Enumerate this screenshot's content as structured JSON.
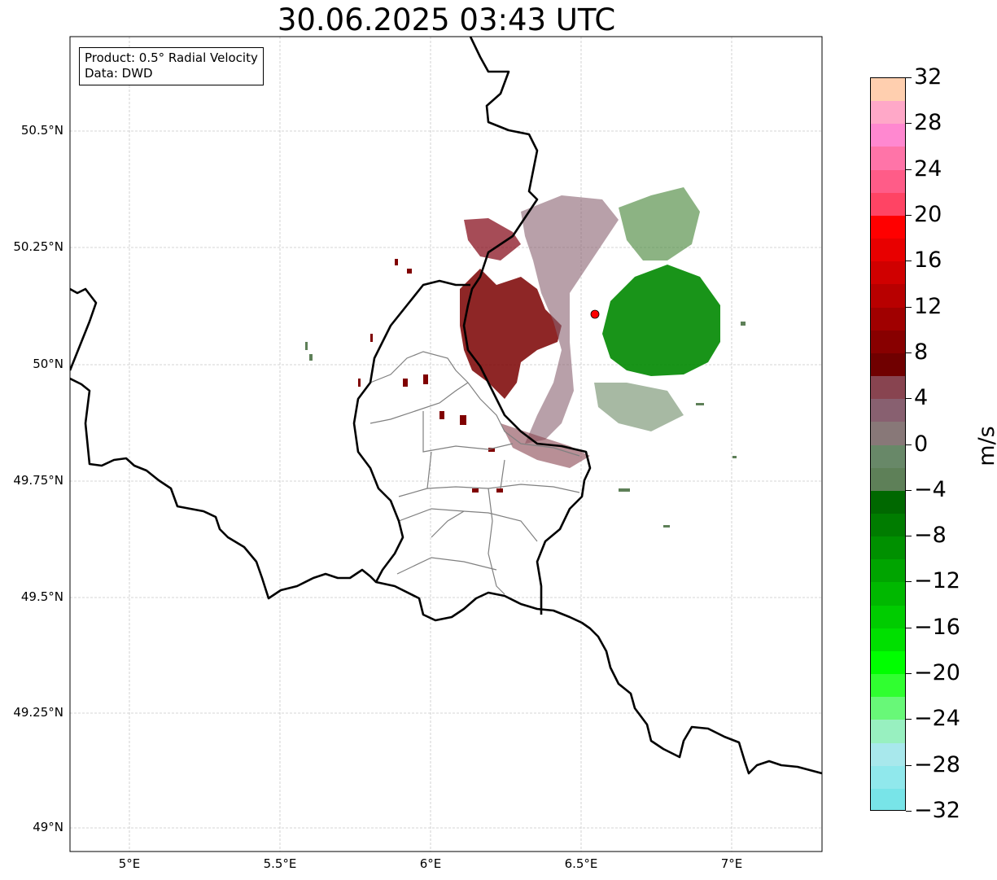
{
  "title": "30.06.2025 03:43 UTC",
  "info": {
    "product": "Product: 0.5° Radial Velocity",
    "source": "Data: DWD"
  },
  "lat_ticks": [
    "50.5°N",
    "50.25°N",
    "50°N",
    "49.75°N",
    "49.5°N",
    "49.25°N",
    "49°N"
  ],
  "lon_ticks": [
    "5°E",
    "5.5°E",
    "6°E",
    "6.5°E",
    "7°E"
  ],
  "colorbar": {
    "unit": "m/s",
    "min": -32,
    "max": 32,
    "ticks": [
      "32",
      "28",
      "24",
      "20",
      "16",
      "12",
      "8",
      "4",
      "0",
      "−4",
      "−8",
      "−12",
      "−16",
      "−20",
      "−24",
      "−28",
      "−32"
    ],
    "colors_top_to_bottom": [
      "#ffcfaf",
      "#ffa8c8",
      "#ff88d0",
      "#ff74a8",
      "#ff5c88",
      "#ff4464",
      "#ff0000",
      "#e80000",
      "#d00000",
      "#b80000",
      "#a00000",
      "#880000",
      "#700000",
      "#884450",
      "#886070",
      "#887878",
      "#688868",
      "#5e8058",
      "#006800",
      "#007c00",
      "#009000",
      "#00a400",
      "#00b800",
      "#00cc00",
      "#00e000",
      "#00ff00",
      "#30ff30",
      "#68f878",
      "#98f0c0",
      "#a8e8ec",
      "#90e8ec",
      "#78e4e8"
    ]
  },
  "radar_site_color": "#ff0000",
  "velocity_colors": {
    "outbound": "#800000",
    "outbound_weak": "#886070",
    "inbound": "#008800",
    "inbound_weak": "#5e8058"
  }
}
